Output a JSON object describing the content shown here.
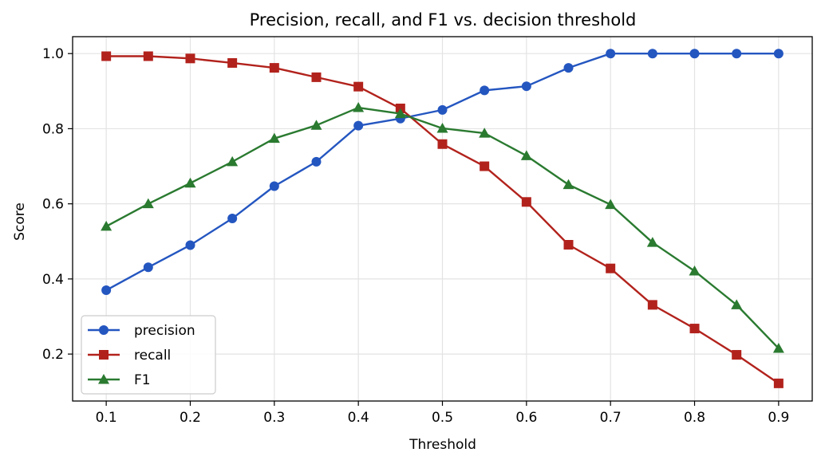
{
  "chart_data": {
    "type": "line",
    "title": "Precision, recall, and F1 vs. decision threshold",
    "xlabel": "Threshold",
    "ylabel": "Score",
    "xlim": [
      0.06,
      0.94
    ],
    "ylim": [
      0.075,
      1.045
    ],
    "xticks": [
      0.1,
      0.2,
      0.3,
      0.4,
      0.5,
      0.6,
      0.7,
      0.8,
      0.9
    ],
    "yticks": [
      0.2,
      0.4,
      0.6,
      0.8,
      1.0
    ],
    "grid": true,
    "legend_position": "lower-left",
    "x": [
      0.1,
      0.15,
      0.2,
      0.25,
      0.3,
      0.35,
      0.4,
      0.45,
      0.5,
      0.55,
      0.6,
      0.65,
      0.7,
      0.75,
      0.8,
      0.85,
      0.9
    ],
    "series": [
      {
        "name": "precision",
        "color": "#2456c0",
        "marker": "circle",
        "values": [
          0.37,
          0.431,
          0.49,
          0.561,
          0.647,
          0.712,
          0.808,
          0.827,
          0.85,
          0.902,
          0.913,
          0.962,
          1.0,
          1.0,
          1.0,
          1.0,
          1.0
        ]
      },
      {
        "name": "recall",
        "color": "#b2221c",
        "marker": "square",
        "values": [
          0.993,
          0.993,
          0.987,
          0.975,
          0.962,
          0.937,
          0.912,
          0.854,
          0.759,
          0.7,
          0.605,
          0.491,
          0.428,
          0.331,
          0.268,
          0.198,
          0.122
        ]
      },
      {
        "name": "F1",
        "color": "#2a7a30",
        "marker": "triangle",
        "values": [
          0.54,
          0.6,
          0.655,
          0.712,
          0.774,
          0.809,
          0.856,
          0.84,
          0.801,
          0.788,
          0.728,
          0.651,
          0.598,
          0.497,
          0.421,
          0.331,
          0.215
        ]
      }
    ]
  }
}
